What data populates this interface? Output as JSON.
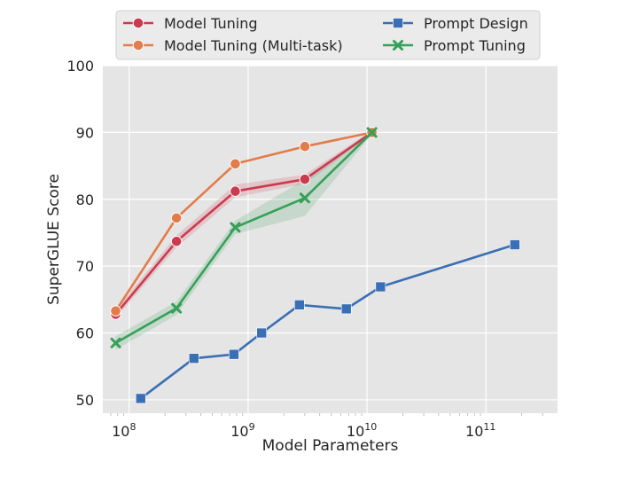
{
  "chart_data": {
    "type": "line",
    "xlabel": "Model Parameters",
    "ylabel": "SuperGLUE Score",
    "xscale": "log",
    "xlim": [
      60000000,
      400000000000
    ],
    "ylim": [
      48,
      100
    ],
    "x_ticks": [
      {
        "value": 100000000,
        "label": "10",
        "exp": "8"
      },
      {
        "value": 1000000000,
        "label": "10",
        "exp": "9"
      },
      {
        "value": 10000000000,
        "label": "10",
        "exp": "10"
      },
      {
        "value": 100000000000,
        "label": "10",
        "exp": "11"
      }
    ],
    "y_ticks": [
      {
        "value": 50,
        "label": "50"
      },
      {
        "value": 60,
        "label": "60"
      },
      {
        "value": 70,
        "label": "70"
      },
      {
        "value": 80,
        "label": "80"
      },
      {
        "value": 90,
        "label": "90"
      },
      {
        "value": 100,
        "label": "100"
      }
    ],
    "grid": true,
    "legend_position": "top",
    "series": [
      {
        "name": "Model Tuning",
        "color": "#cc3a4f",
        "marker": "circle",
        "points": [
          {
            "x": 77000000,
            "y": 62.8,
            "lo": 62.2,
            "hi": 63.4
          },
          {
            "x": 250000000,
            "y": 73.7,
            "lo": 72.8,
            "hi": 74.6
          },
          {
            "x": 780000000,
            "y": 81.2,
            "lo": 80.3,
            "hi": 82.2
          },
          {
            "x": 3000000000,
            "y": 83.0,
            "lo": 82.3,
            "hi": 83.7
          },
          {
            "x": 11000000000,
            "y": 90.0,
            "lo": 89.7,
            "hi": 90.3
          }
        ]
      },
      {
        "name": "Model Tuning (Multi-task)",
        "color": "#e27c4a",
        "marker": "circle",
        "points": [
          {
            "x": 77000000,
            "y": 63.3
          },
          {
            "x": 250000000,
            "y": 77.2
          },
          {
            "x": 780000000,
            "y": 85.3
          },
          {
            "x": 3000000000,
            "y": 87.9
          },
          {
            "x": 11000000000,
            "y": 90.0
          }
        ]
      },
      {
        "name": "Prompt Design",
        "color": "#3a6fb5",
        "marker": "square",
        "points": [
          {
            "x": 125000000,
            "y": 50.2
          },
          {
            "x": 350000000,
            "y": 56.2
          },
          {
            "x": 760000000,
            "y": 56.8
          },
          {
            "x": 1300000000,
            "y": 60.0
          },
          {
            "x": 2700000000,
            "y": 64.2
          },
          {
            "x": 6700000000,
            "y": 63.6
          },
          {
            "x": 13000000000,
            "y": 66.9
          },
          {
            "x": 175000000000,
            "y": 73.2
          }
        ]
      },
      {
        "name": "Prompt Tuning",
        "color": "#36a059",
        "marker": "x",
        "points": [
          {
            "x": 77000000,
            "y": 58.5,
            "lo": 57.5,
            "hi": 59.5
          },
          {
            "x": 250000000,
            "y": 63.7,
            "lo": 62.7,
            "hi": 64.7
          },
          {
            "x": 780000000,
            "y": 75.8,
            "lo": 74.8,
            "hi": 76.8
          },
          {
            "x": 3000000000,
            "y": 80.2,
            "lo": 77.5,
            "hi": 83.0
          },
          {
            "x": 11000000000,
            "y": 90.0,
            "lo": 89.7,
            "hi": 90.3
          }
        ]
      }
    ]
  }
}
